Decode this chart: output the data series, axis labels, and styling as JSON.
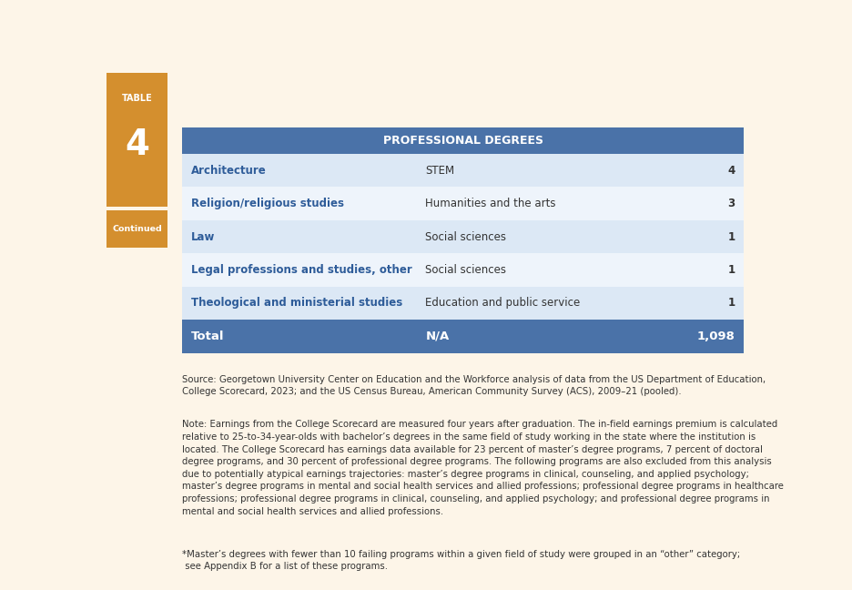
{
  "table_label": "TABLE",
  "table_number": "4",
  "table_continued": "Continued",
  "header_text": "PROFESSIONAL DEGREES",
  "rows": [
    [
      "Architecture",
      "STEM",
      "4"
    ],
    [
      "Religion/religious studies",
      "Humanities and the arts",
      "3"
    ],
    [
      "Law",
      "Social sciences",
      "1"
    ],
    [
      "Legal professions and studies, other",
      "Social sciences",
      "1"
    ],
    [
      "Theological and ministerial studies",
      "Education and public service",
      "1"
    ]
  ],
  "total_row": [
    "Total",
    "N/A",
    "1,098"
  ],
  "bg_color": "#fdf5e8",
  "header_bg": "#4a72a8",
  "header_text_color": "#ffffff",
  "row_alt_color": "#dce8f5",
  "row_normal_color": "#eef4fb",
  "total_bg": "#4a72a8",
  "total_text_color": "#ffffff",
  "col1_text_color": "#2e5c99",
  "col2_text_color": "#333333",
  "col3_text_color": "#333333",
  "label_bg": "#d48f2e",
  "label_text_color": "#ffffff",
  "source_text": "Source: Georgetown University Center on Education and the Workforce analysis of data from the US Department of Education,\nCollege Scorecard, 2023; and the US Census Bureau, American Community Survey (ACS), 2009–21 (pooled).",
  "note_text": "Note: Earnings from the College Scorecard are measured four years after graduation. The in-field earnings premium is calculated\nrelative to 25-to-34-year-olds with bachelor’s degrees in the same field of study working in the state where the institution is\nlocated. The College Scorecard has earnings data available for 23 percent of master’s degree programs, 7 percent of doctoral\ndegree programs, and 30 percent of professional degree programs. The following programs are also excluded from this analysis\ndue to potentially atypical earnings trajectories: master’s degree programs in clinical, counseling, and applied psychology;\nmaster’s degree programs in mental and social health services and allied professions; professional degree programs in healthcare\nprofessions; professional degree programs in clinical, counseling, and applied psychology; and professional degree programs in\nmental and social health services and allied professions.",
  "asterisk_text": "*Master’s degrees with fewer than 10 failing programs within a given field of study were grouped in an “other” category;\n see Appendix B for a list of these programs."
}
